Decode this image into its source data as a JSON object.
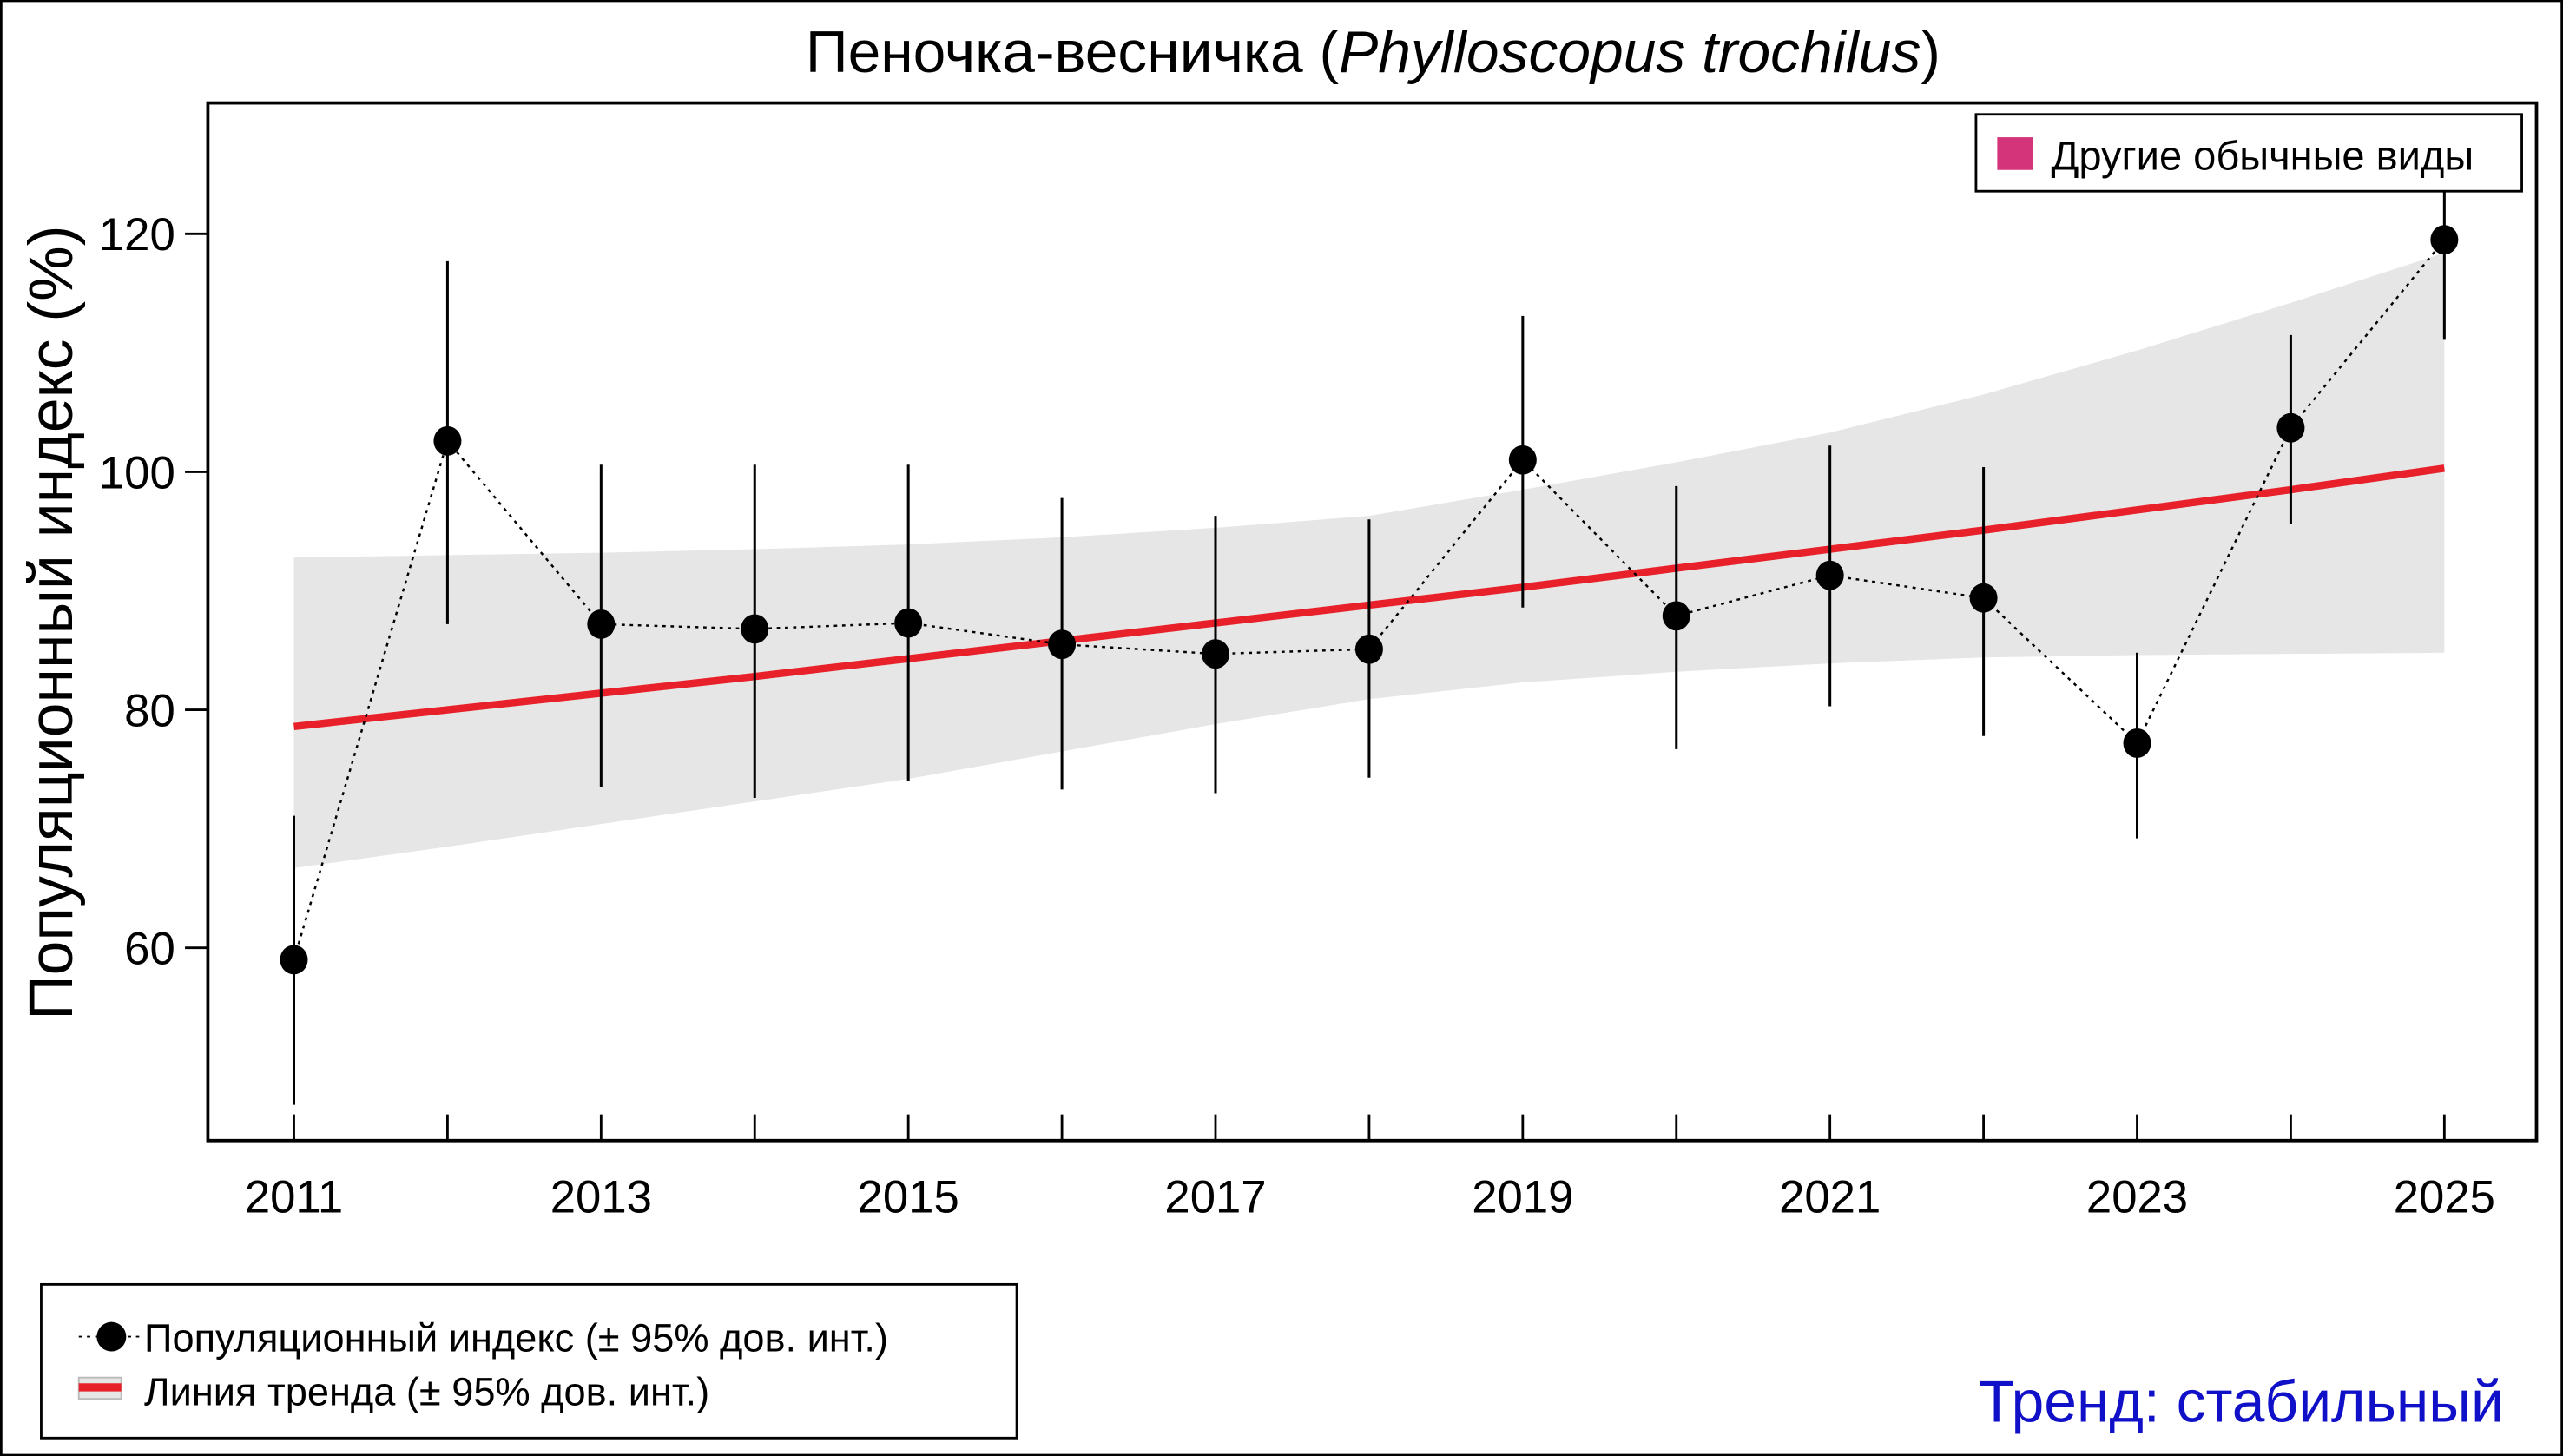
{
  "chart_data": {
    "type": "line",
    "title": {
      "main": "Пеночка-весничка (",
      "italic": "Phylloscopus trochilus",
      "end": ")"
    },
    "xlabel": "",
    "ylabel": "Популяционный индекс (%)",
    "xlim": [
      2010.44,
      2025.6
    ],
    "ylim": [
      43.8,
      131
    ],
    "x_ticks": [
      2011,
      2012,
      2013,
      2014,
      2015,
      2016,
      2017,
      2018,
      2019,
      2020,
      2021,
      2022,
      2023,
      2024,
      2025
    ],
    "x_tick_labels": [
      "2011",
      "2013",
      "2015",
      "2017",
      "2019",
      "2021",
      "2023",
      "2025"
    ],
    "y_ticks": [
      60,
      80,
      100,
      120
    ],
    "y_tick_labels": [
      "60",
      "80",
      "100",
      "120"
    ],
    "grid": false,
    "x": [
      2011,
      2012,
      2013,
      2014,
      2015,
      2016,
      2017,
      2018,
      2019,
      2020,
      2021,
      2022,
      2023,
      2024,
      2025
    ],
    "index": {
      "name": "Популяционный индекс (± 95% дов. инт.)",
      "values": [
        59.0,
        102.6,
        87.2,
        86.8,
        87.3,
        85.5,
        84.7,
        85.1,
        101.0,
        87.9,
        91.3,
        89.4,
        77.2,
        103.7,
        119.5
      ],
      "ci_lower": [
        46.8,
        87.2,
        73.5,
        72.6,
        74.0,
        73.3,
        73.0,
        74.3,
        88.6,
        76.7,
        80.3,
        77.8,
        69.2,
        95.6,
        111.1
      ],
      "ci_upper": [
        71.1,
        117.7,
        100.6,
        100.6,
        100.6,
        97.8,
        96.3,
        96.0,
        113.1,
        98.8,
        102.2,
        100.4,
        84.8,
        111.5,
        128.0
      ],
      "color": "#000000"
    },
    "trend": {
      "name": "Линия тренда (± 95% дов. инт.)",
      "values": [
        78.6,
        80.0,
        81.4,
        82.8,
        84.3,
        85.8,
        87.3,
        88.8,
        90.3,
        91.9,
        93.5,
        95.1,
        96.8,
        98.5,
        100.3
      ],
      "ci_lower": [
        66.7,
        68.5,
        70.4,
        72.3,
        74.2,
        76.5,
        78.8,
        80.9,
        82.3,
        83.2,
        83.9,
        84.4,
        84.6,
        84.7,
        84.8
      ],
      "ci_upper": [
        92.8,
        93.0,
        93.2,
        93.5,
        93.9,
        94.5,
        95.3,
        96.3,
        98.5,
        100.8,
        103.3,
        106.5,
        110.2,
        114.2,
        118.4
      ],
      "color": "#e8202a",
      "band_color": "#e6e6e6"
    },
    "top_legend": {
      "label": "Другие обычные виды",
      "color": "#d4347a",
      "placement": "top-right"
    },
    "bottom_legend_placement": "bottom-left",
    "trend_status": {
      "text": "Тренд: стабильный",
      "color": "#1010c8"
    }
  }
}
